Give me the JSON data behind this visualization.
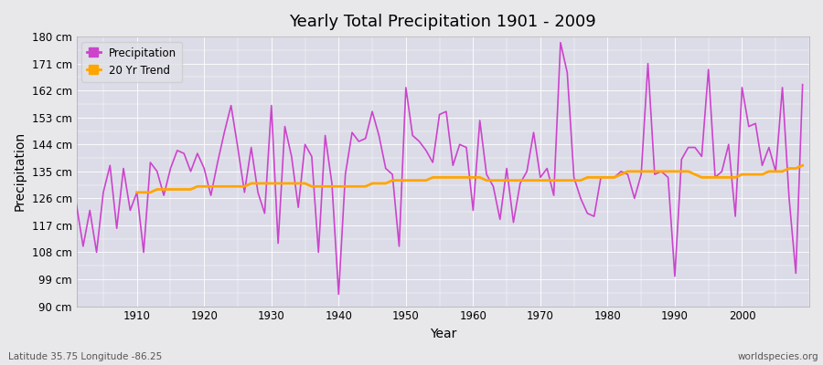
{
  "title": "Yearly Total Precipitation 1901 - 2009",
  "xlabel": "Year",
  "ylabel": "Precipitation",
  "subtitle_left": "Latitude 35.75 Longitude -86.25",
  "subtitle_right": "worldspecies.org",
  "ylim": [
    90,
    180
  ],
  "yticks": [
    90,
    99,
    108,
    117,
    126,
    135,
    144,
    153,
    162,
    171,
    180
  ],
  "ytick_labels": [
    "90 cm",
    "99 cm",
    "108 cm",
    "117 cm",
    "126 cm",
    "135 cm",
    "144 cm",
    "153 cm",
    "162 cm",
    "171 cm",
    "180 cm"
  ],
  "xlim": [
    1901,
    2010
  ],
  "xticks": [
    1910,
    1920,
    1930,
    1940,
    1950,
    1960,
    1970,
    1980,
    1990,
    2000
  ],
  "precip_color": "#CC44CC",
  "trend_color": "#FFA500",
  "bg_color": "#E8E8EB",
  "plot_bg_color": "#DCDCE8",
  "legend_bg": "#E0E0E8",
  "years": [
    1901,
    1902,
    1903,
    1904,
    1905,
    1906,
    1907,
    1908,
    1909,
    1910,
    1911,
    1912,
    1913,
    1914,
    1915,
    1916,
    1917,
    1918,
    1919,
    1920,
    1921,
    1922,
    1923,
    1924,
    1925,
    1926,
    1927,
    1928,
    1929,
    1930,
    1931,
    1932,
    1933,
    1934,
    1935,
    1936,
    1937,
    1938,
    1939,
    1940,
    1941,
    1942,
    1943,
    1944,
    1945,
    1946,
    1947,
    1948,
    1949,
    1950,
    1951,
    1952,
    1953,
    1954,
    1955,
    1956,
    1957,
    1958,
    1959,
    1960,
    1961,
    1962,
    1963,
    1964,
    1965,
    1966,
    1967,
    1968,
    1969,
    1970,
    1971,
    1972,
    1973,
    1974,
    1975,
    1976,
    1977,
    1978,
    1979,
    1980,
    1981,
    1982,
    1983,
    1984,
    1985,
    1986,
    1987,
    1988,
    1989,
    1990,
    1991,
    1992,
    1993,
    1994,
    1995,
    1996,
    1997,
    1998,
    1999,
    2000,
    2001,
    2002,
    2003,
    2004,
    2005,
    2006,
    2007,
    2008,
    2009
  ],
  "precip": [
    124,
    110,
    122,
    108,
    128,
    137,
    116,
    136,
    122,
    128,
    108,
    138,
    135,
    127,
    136,
    142,
    141,
    135,
    141,
    136,
    127,
    138,
    148,
    157,
    143,
    128,
    143,
    128,
    121,
    157,
    111,
    150,
    140,
    123,
    144,
    140,
    108,
    147,
    131,
    94,
    134,
    148,
    145,
    146,
    155,
    147,
    136,
    134,
    110,
    163,
    147,
    145,
    142,
    138,
    154,
    155,
    137,
    144,
    143,
    122,
    152,
    134,
    130,
    119,
    136,
    118,
    131,
    135,
    148,
    133,
    136,
    127,
    178,
    168,
    133,
    126,
    121,
    120,
    133,
    133,
    133,
    135,
    134,
    126,
    134,
    171,
    134,
    135,
    133,
    100,
    139,
    143,
    143,
    140,
    169,
    133,
    135,
    144,
    120,
    163,
    150,
    151,
    137,
    143,
    135,
    163,
    126,
    101,
    164
  ],
  "trend_start_year": 1910,
  "trend": [
    128,
    128,
    128,
    129,
    129,
    129,
    129,
    129,
    129,
    130,
    130,
    130,
    130,
    130,
    130,
    130,
    130,
    131,
    131,
    131,
    131,
    131,
    131,
    131,
    131,
    131,
    130,
    130,
    130,
    130,
    130,
    130,
    130,
    130,
    130,
    131,
    131,
    131,
    132,
    132,
    132,
    132,
    132,
    132,
    133,
    133,
    133,
    133,
    133,
    133,
    133,
    133,
    132,
    132,
    132,
    132,
    132,
    132,
    132,
    132,
    132,
    132,
    132,
    132,
    132,
    132,
    132,
    133,
    133,
    133,
    133,
    133,
    134,
    135,
    135,
    135,
    135,
    135,
    135,
    135,
    135,
    135,
    135,
    134,
    133,
    133,
    133,
    133,
    133,
    133,
    134,
    134,
    134,
    134,
    135,
    135,
    135,
    136,
    136,
    137
  ]
}
